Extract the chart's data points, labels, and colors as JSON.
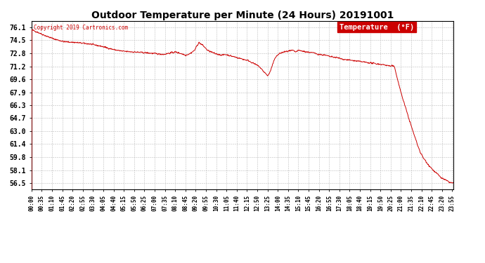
{
  "title": "Outdoor Temperature per Minute (24 Hours) 20191001",
  "copyright_text": "Copyright 2019 Cartronics.com",
  "legend_label": "Temperature  (°F)",
  "yticks": [
    56.5,
    58.1,
    59.8,
    61.4,
    63.0,
    64.7,
    66.3,
    67.9,
    69.6,
    71.2,
    72.8,
    74.5,
    76.1
  ],
  "ymin": 55.7,
  "ymax": 76.9,
  "line_color": "#cc0000",
  "background_color": "#ffffff",
  "grid_color": "#bbbbbb",
  "xtick_interval_minutes": 35,
  "total_minutes": 1440,
  "figsize": [
    6.9,
    3.75
  ],
  "dpi": 100
}
